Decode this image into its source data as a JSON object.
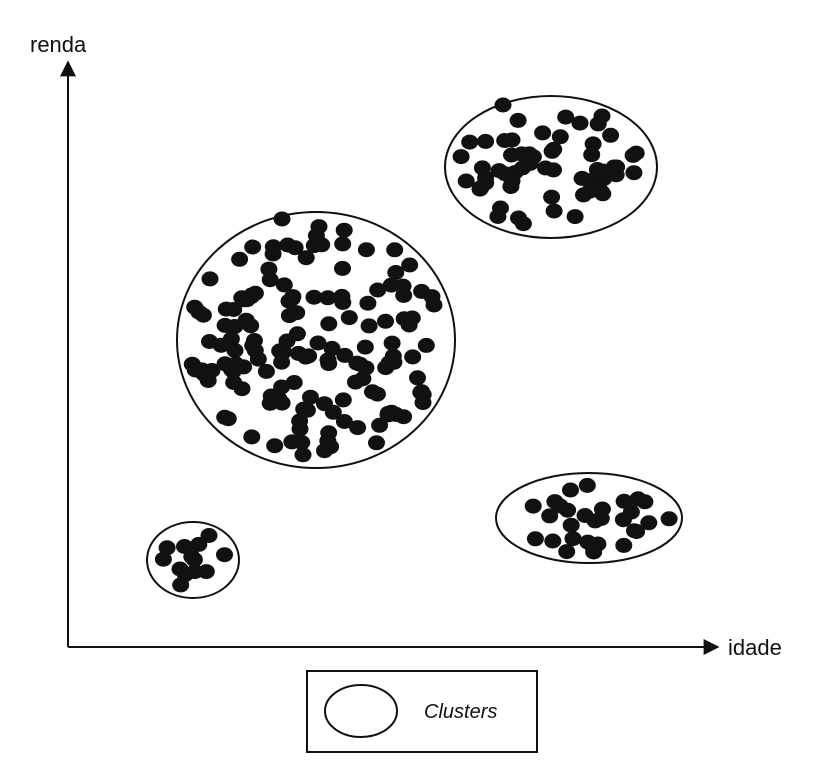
{
  "axes": {
    "y_label": "renda",
    "x_label": "idade"
  },
  "legend": {
    "label": "Clusters"
  },
  "colors": {
    "ink": "#111111",
    "background": "#ffffff"
  }
}
